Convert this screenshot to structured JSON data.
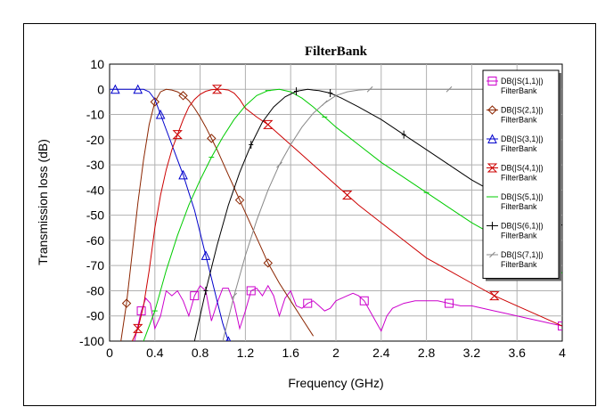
{
  "chart_data": {
    "type": "line",
    "title": "FilterBank",
    "xlabel": "Frequency (GHz)",
    "ylabel": "Transmission loss (dB)",
    "xlim": [
      0,
      4
    ],
    "ylim": [
      -100,
      10
    ],
    "x_ticks": [
      "0",
      "0.4",
      "0.8",
      "1.2",
      "1.6",
      "2",
      "2.4",
      "2.8",
      "3.2",
      "3.6",
      "4"
    ],
    "y_ticks": [
      "10",
      "0",
      "-10",
      "-20",
      "-30",
      "-40",
      "-50",
      "-60",
      "-70",
      "-80",
      "-90",
      "-100"
    ],
    "grid": true,
    "legend_position": "top-right",
    "series": [
      {
        "name": "DB(|S(1,1)|)",
        "source": "FilterBank",
        "color": "#cc00cc",
        "marker": "square",
        "x": [
          0.22,
          0.28,
          0.32,
          0.36,
          0.4,
          0.45,
          0.5,
          0.55,
          0.6,
          0.65,
          0.7,
          0.75,
          0.8,
          0.85,
          0.9,
          0.95,
          1.0,
          1.05,
          1.1,
          1.15,
          1.2,
          1.25,
          1.3,
          1.35,
          1.4,
          1.45,
          1.5,
          1.55,
          1.6,
          1.65,
          1.7,
          1.75,
          1.8,
          1.85,
          1.9,
          1.95,
          2.0,
          2.05,
          2.1,
          2.15,
          2.2,
          2.25,
          2.3,
          2.35,
          2.4,
          2.45,
          2.5,
          2.6,
          2.7,
          2.8,
          2.9,
          3.0,
          3.1,
          3.2,
          3.3,
          3.4,
          3.5,
          3.6,
          3.7,
          3.8,
          3.9,
          4.0
        ],
        "y": [
          -100,
          -88,
          -83,
          -85,
          -95,
          -90,
          -80,
          -82,
          -80,
          -84,
          -90,
          -82,
          -78,
          -80,
          -92,
          -85,
          -79,
          -79,
          -85,
          -95,
          -88,
          -80,
          -79,
          -82,
          -78,
          -82,
          -90,
          -83,
          -80,
          -86,
          -87,
          -85,
          -84,
          -86,
          -88,
          -87,
          -84,
          -83,
          -82,
          -81,
          -82,
          -84,
          -88,
          -92,
          -96,
          -90,
          -87,
          -85,
          -84,
          -84,
          -84,
          -85,
          -86,
          -86,
          -87,
          -88,
          -89,
          -90,
          -91,
          -92,
          -93,
          -94
        ]
      },
      {
        "name": "DB(|S(2,1)|)",
        "source": "FilterBank",
        "color": "#8b2500",
        "marker": "diamond",
        "x": [
          0.1,
          0.15,
          0.2,
          0.25,
          0.3,
          0.35,
          0.4,
          0.45,
          0.5,
          0.55,
          0.6,
          0.65,
          0.7,
          0.75,
          0.8,
          0.85,
          0.9,
          0.95,
          1.0,
          1.05,
          1.1,
          1.15,
          1.2,
          1.25,
          1.3,
          1.35,
          1.4,
          1.5,
          1.6,
          1.7,
          1.8
        ],
        "y": [
          -100,
          -85,
          -65,
          -45,
          -28,
          -14,
          -5,
          -1,
          0,
          -0.3,
          -1,
          -2.5,
          -4.5,
          -7.5,
          -11,
          -15,
          -19.5,
          -24,
          -29,
          -34,
          -39,
          -44,
          -49,
          -54,
          -59,
          -64,
          -69,
          -77,
          -84,
          -91,
          -98
        ]
      },
      {
        "name": "DB(|S(3,1)|)",
        "source": "FilterBank",
        "color": "#0000cc",
        "marker": "triangle",
        "x": [
          0,
          0.05,
          0.1,
          0.15,
          0.2,
          0.25,
          0.3,
          0.35,
          0.4,
          0.45,
          0.5,
          0.55,
          0.6,
          0.65,
          0.7,
          0.75,
          0.8,
          0.85,
          0.9,
          0.95,
          1.0,
          1.05
        ],
        "y": [
          0,
          0,
          0,
          0,
          0,
          0,
          0,
          -1,
          -4,
          -10,
          -16,
          -22,
          -28,
          -34,
          -41,
          -48,
          -57,
          -66,
          -75,
          -84,
          -93,
          -100
        ]
      },
      {
        "name": "DB(|S(4,1)|)",
        "source": "FilterBank",
        "color": "#cc0000",
        "marker": "hourglass",
        "x": [
          0.2,
          0.25,
          0.3,
          0.35,
          0.4,
          0.45,
          0.5,
          0.55,
          0.6,
          0.65,
          0.7,
          0.75,
          0.8,
          0.85,
          0.9,
          0.95,
          1.0,
          1.05,
          1.1,
          1.15,
          1.2,
          1.3,
          1.4,
          1.5,
          1.6,
          1.7,
          1.8,
          1.9,
          2.0,
          2.1,
          2.2,
          2.4,
          2.6,
          2.8,
          3.0,
          3.2,
          3.4,
          3.6,
          3.8,
          4.0
        ],
        "y": [
          -100,
          -95,
          -86,
          -72,
          -55,
          -42,
          -32,
          -24,
          -18,
          -12,
          -7,
          -4,
          -2,
          -0.8,
          -0.2,
          0,
          0,
          -0.3,
          -1.5,
          -4,
          -7.5,
          -11,
          -14,
          -18,
          -22,
          -26,
          -30,
          -34,
          -38,
          -42,
          -46,
          -53,
          -60,
          -67,
          -72,
          -77,
          -82,
          -86,
          -90,
          -94
        ]
      },
      {
        "name": "DB(|S(5,1)|)",
        "source": "FilterBank",
        "color": "#00cc00",
        "marker": "tick",
        "x": [
          0.3,
          0.4,
          0.5,
          0.6,
          0.7,
          0.8,
          0.9,
          1.0,
          1.1,
          1.2,
          1.3,
          1.4,
          1.5,
          1.6,
          1.7,
          1.8,
          1.9,
          2.0,
          2.2,
          2.4,
          2.6,
          2.8,
          3.0,
          3.2,
          3.4,
          3.6,
          3.8,
          4.0
        ],
        "y": [
          -100,
          -88,
          -72,
          -58,
          -46,
          -36,
          -27,
          -19,
          -12,
          -6.5,
          -2.5,
          -0.5,
          0,
          -1,
          -3.5,
          -7,
          -11,
          -15,
          -22,
          -29,
          -35,
          -41,
          -47,
          -53,
          -58,
          -63,
          -68,
          -73
        ]
      },
      {
        "name": "DB(|S(6,1)|)",
        "source": "FilterBank",
        "color": "#000000",
        "marker": "plus",
        "x": [
          0.75,
          0.85,
          0.95,
          1.05,
          1.15,
          1.25,
          1.35,
          1.45,
          1.55,
          1.65,
          1.75,
          1.8,
          1.85,
          1.95,
          2.05,
          2.2,
          2.4,
          2.6,
          2.8,
          3.0,
          3.2,
          3.4,
          3.6,
          3.8,
          4.0
        ],
        "y": [
          -100,
          -80,
          -62,
          -46,
          -33,
          -22,
          -13,
          -7,
          -3,
          -0.8,
          0,
          -0.3,
          -0.5,
          -1.5,
          -3.5,
          -7,
          -12,
          -18,
          -24,
          -30,
          -36,
          -41,
          -46,
          -50,
          -54
        ]
      },
      {
        "name": "DB(|S(7,1)|)",
        "source": "FilterBank",
        "color": "#888888",
        "marker": "slash",
        "x": [
          1.0,
          1.1,
          1.2,
          1.3,
          1.4,
          1.5,
          1.6,
          1.7,
          1.8,
          1.9,
          2.0,
          2.1,
          2.2,
          2.3,
          2.4,
          2.6,
          2.8,
          3.0,
          3.2,
          3.4,
          3.6,
          3.8,
          4.0
        ],
        "y": [
          -100,
          -82,
          -66,
          -52,
          -40,
          -30,
          -22,
          -15,
          -9.5,
          -5.5,
          -2.5,
          -1,
          -0.3,
          0,
          0,
          0,
          0,
          0,
          0,
          0,
          0,
          0,
          0
        ]
      }
    ]
  }
}
